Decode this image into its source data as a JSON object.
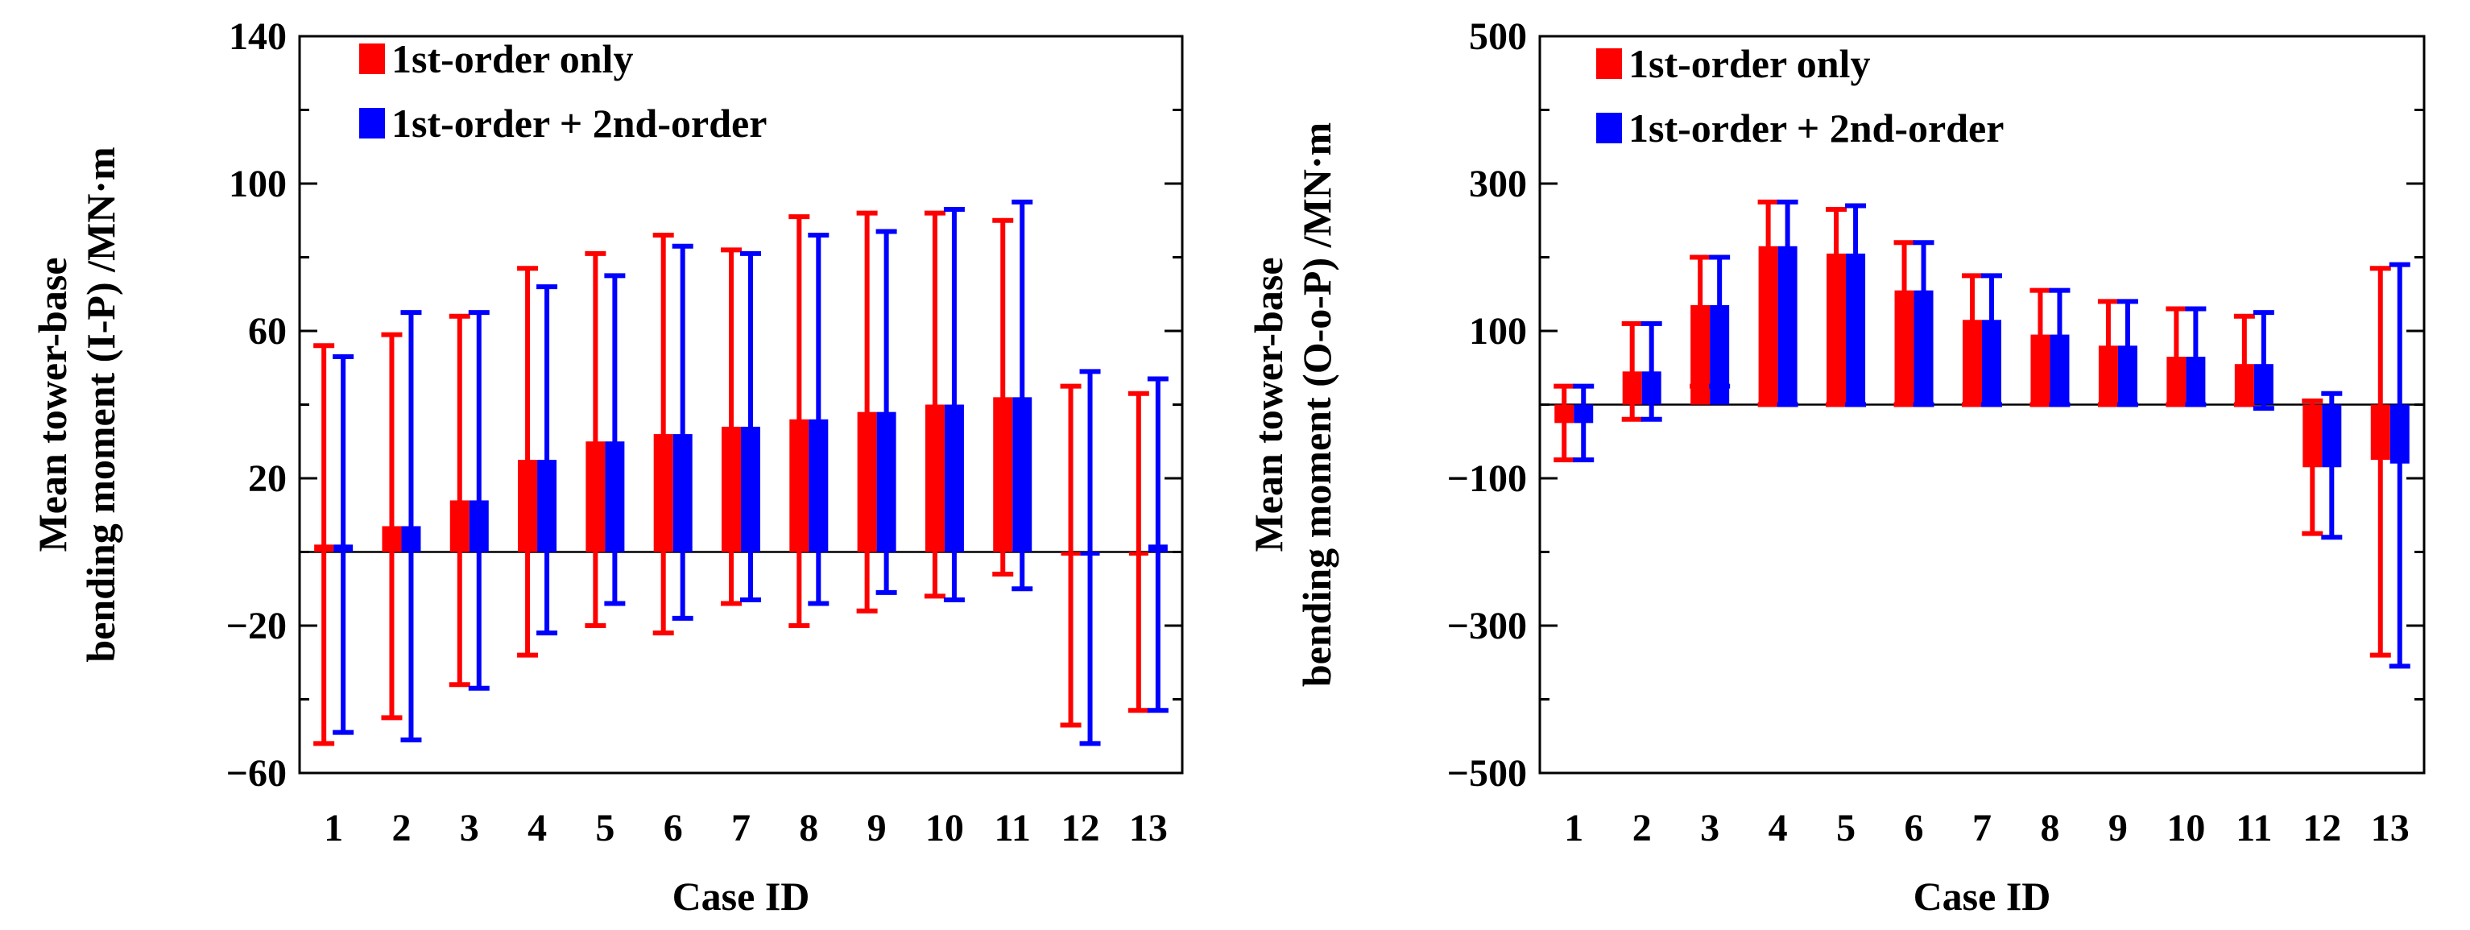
{
  "chart_data": [
    {
      "type": "bar",
      "name": "in-plane",
      "categories": [
        "1",
        "2",
        "3",
        "4",
        "5",
        "6",
        "7",
        "8",
        "9",
        "10",
        "11",
        "12",
        "13"
      ],
      "xlabel": "Case ID",
      "ylabel_line1": "Mean tower-base",
      "ylabel_line2": "bending moment (I-P) /MN·m",
      "ylim": [
        -60,
        140
      ],
      "yticks": [
        -60,
        -20,
        20,
        60,
        100,
        140
      ],
      "ytick_labels": [
        "−60",
        "−20",
        "20",
        "60",
        "100",
        "140"
      ],
      "series": [
        {
          "name": "1st-order only",
          "color": "#ff0000",
          "values": [
            2,
            7,
            14,
            25,
            30,
            32,
            34,
            36,
            38,
            40,
            42,
            -1,
            -1
          ],
          "err_low": [
            -52,
            -45,
            -36,
            -28,
            -20,
            -22,
            -14,
            -20,
            -16,
            -12,
            -6,
            -47,
            -43
          ],
          "err_high": [
            56,
            59,
            64,
            77,
            81,
            86,
            82,
            91,
            92,
            92,
            90,
            45,
            43
          ]
        },
        {
          "name": "1st-order + 2nd-order",
          "color": "#0000ff",
          "values": [
            2,
            7,
            14,
            25,
            30,
            32,
            34,
            36,
            38,
            40,
            42,
            -1,
            2
          ],
          "err_low": [
            -49,
            -51,
            -37,
            -22,
            -14,
            -18,
            -13,
            -14,
            -11,
            -13,
            -10,
            -52,
            -43
          ],
          "err_high": [
            53,
            65,
            65,
            72,
            75,
            83,
            81,
            86,
            87,
            93,
            95,
            49,
            47
          ]
        }
      ]
    },
    {
      "type": "bar",
      "name": "out-of-plane",
      "categories": [
        "1",
        "2",
        "3",
        "4",
        "5",
        "6",
        "7",
        "8",
        "9",
        "10",
        "11",
        "12",
        "13"
      ],
      "xlabel": "Case ID",
      "ylabel_line1": "Mean tower-base",
      "ylabel_line2": "bending moment (O-o-P) /MN·m",
      "ylim": [
        -500,
        500
      ],
      "yticks": [
        -500,
        -300,
        -100,
        100,
        300,
        500
      ],
      "ytick_labels": [
        "−500",
        "−300",
        "−100",
        "100",
        "300",
        "500"
      ],
      "series": [
        {
          "name": "1st-order only",
          "color": "#ff0000",
          "values": [
            -25,
            45,
            135,
            215,
            205,
            155,
            115,
            95,
            80,
            65,
            55,
            -85,
            -75
          ],
          "err_low": [
            -75,
            -20,
            25,
            0,
            0,
            0,
            0,
            0,
            0,
            0,
            0,
            -175,
            -340
          ],
          "err_high": [
            25,
            110,
            200,
            275,
            265,
            220,
            175,
            155,
            140,
            130,
            120,
            5,
            185
          ]
        },
        {
          "name": "1st-order + 2nd-order",
          "color": "#0000ff",
          "values": [
            -25,
            45,
            135,
            215,
            205,
            155,
            115,
            95,
            80,
            65,
            55,
            -85,
            -80
          ],
          "err_low": [
            -75,
            -20,
            25,
            0,
            0,
            0,
            0,
            0,
            0,
            0,
            -5,
            -180,
            -355
          ],
          "err_high": [
            25,
            110,
            200,
            275,
            270,
            220,
            175,
            155,
            140,
            130,
            125,
            15,
            190
          ]
        }
      ]
    }
  ]
}
